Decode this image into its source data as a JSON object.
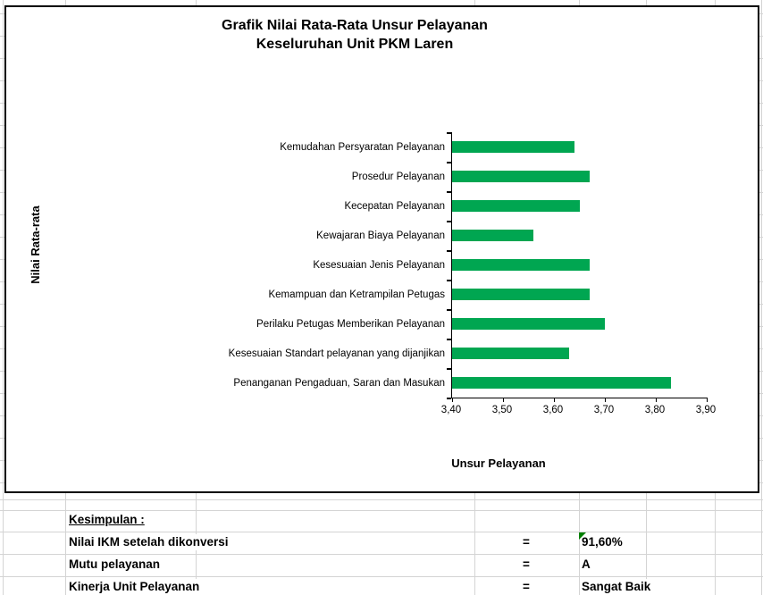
{
  "chart": {
    "title_line1": "Grafik Nilai Rata-Rata Unsur Pelayanan",
    "title_line2": "Keseluruhan Unit PKM Laren",
    "y_axis_title": "Nilai Rata-rata",
    "x_axis_title": "Unsur Pelayanan",
    "bar_color": "#00A651"
  },
  "chart_data": {
    "type": "bar",
    "orientation": "horizontal",
    "title": "Grafik Nilai Rata-Rata Unsur Pelayanan Keseluruhan Unit PKM Laren",
    "xlabel": "Unsur Pelayanan",
    "ylabel": "Nilai Rata-rata",
    "categories": [
      "Kemudahan Persyaratan Pelayanan",
      "Prosedur Pelayanan",
      "Kecepatan Pelayanan",
      "Kewajaran Biaya Pelayanan",
      "Kesesuaian Jenis Pelayanan",
      "Kemampuan dan Ketrampilan Petugas",
      "Perilaku Petugas Memberikan Pelayanan",
      "Kesesuaian Standart pelayanan yang dijanjikan",
      "Penanganan Pengaduan, Saran dan Masukan"
    ],
    "values": [
      3.64,
      3.67,
      3.65,
      3.56,
      3.67,
      3.67,
      3.7,
      3.63,
      3.83
    ],
    "value_axis_range": [
      3.4,
      3.9
    ],
    "value_tick_labels": [
      "3,40",
      "3,50",
      "3,60",
      "3,70",
      "3,80",
      "3,90"
    ],
    "grid": false,
    "legend": false,
    "bar_color": "#00A651"
  },
  "summary": {
    "heading": "Kesimpulan :",
    "rows": [
      {
        "label": "Nilai IKM setelah dikonversi",
        "eq": "=",
        "value": "91,60%",
        "flag": true
      },
      {
        "label": "Mutu pelayanan",
        "eq": "=",
        "value": "A",
        "flag": false
      },
      {
        "label": "Kinerja Unit Pelayanan",
        "eq": "=",
        "value": "Sangat Baik",
        "flag": false
      }
    ],
    "flag_color": "#008000"
  }
}
